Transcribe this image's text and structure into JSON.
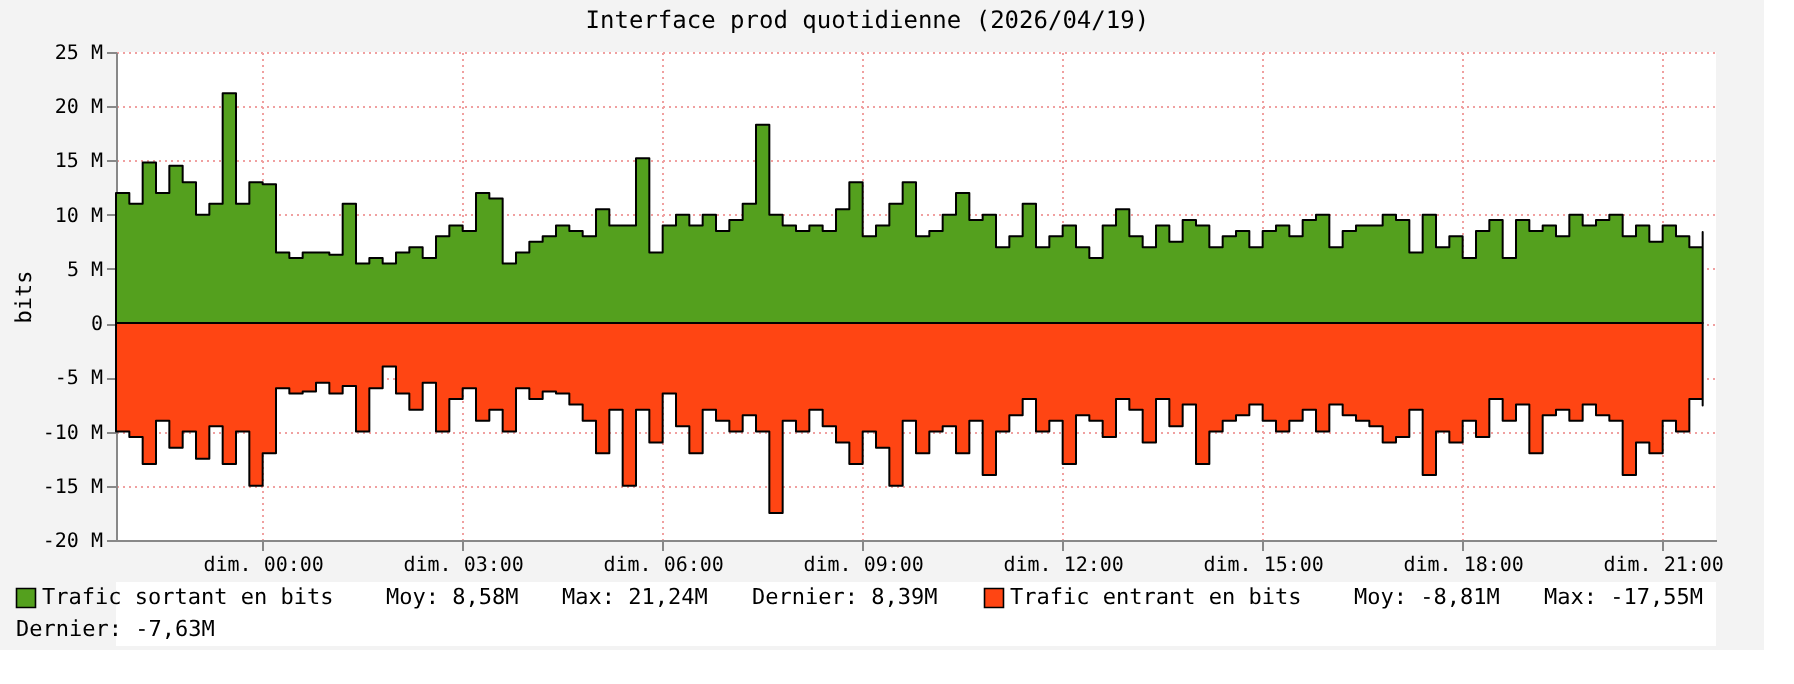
{
  "chart_data": {
    "type": "area",
    "title": "Interface prod quotidienne (2026/04/19)",
    "ylabel": "bits",
    "x": [
      "2026-04-18T21:48",
      "2026-04-18T22:00",
      "2026-04-18T22:12",
      "2026-04-18T22:24",
      "2026-04-18T22:36",
      "2026-04-18T22:48",
      "2026-04-18T23:00",
      "2026-04-18T23:12",
      "2026-04-18T23:24",
      "2026-04-18T23:36",
      "2026-04-18T23:48",
      "2026-04-19T00:00",
      "2026-04-19T00:12",
      "2026-04-19T00:24",
      "2026-04-19T00:36",
      "2026-04-19T00:48",
      "2026-04-19T01:00",
      "2026-04-19T01:12",
      "2026-04-19T01:24",
      "2026-04-19T01:36",
      "2026-04-19T01:48",
      "2026-04-19T02:00",
      "2026-04-19T02:12",
      "2026-04-19T02:24",
      "2026-04-19T02:36",
      "2026-04-19T02:48",
      "2026-04-19T03:00",
      "2026-04-19T03:12",
      "2026-04-19T03:24",
      "2026-04-19T03:36",
      "2026-04-19T03:48",
      "2026-04-19T04:00",
      "2026-04-19T04:12",
      "2026-04-19T04:24",
      "2026-04-19T04:36",
      "2026-04-19T04:48",
      "2026-04-19T05:00",
      "2026-04-19T05:12",
      "2026-04-19T05:24",
      "2026-04-19T05:36",
      "2026-04-19T05:48",
      "2026-04-19T06:00",
      "2026-04-19T06:12",
      "2026-04-19T06:24",
      "2026-04-19T06:36",
      "2026-04-19T06:48",
      "2026-04-19T07:00",
      "2026-04-19T07:12",
      "2026-04-19T07:24",
      "2026-04-19T07:36",
      "2026-04-19T07:48",
      "2026-04-19T08:00",
      "2026-04-19T08:12",
      "2026-04-19T08:24",
      "2026-04-19T08:36",
      "2026-04-19T08:48",
      "2026-04-19T09:00",
      "2026-04-19T09:12",
      "2026-04-19T09:24",
      "2026-04-19T09:36",
      "2026-04-19T09:48",
      "2026-04-19T10:00",
      "2026-04-19T10:12",
      "2026-04-19T10:24",
      "2026-04-19T10:36",
      "2026-04-19T10:48",
      "2026-04-19T11:00",
      "2026-04-19T11:12",
      "2026-04-19T11:24",
      "2026-04-19T11:36",
      "2026-04-19T11:48",
      "2026-04-19T12:00",
      "2026-04-19T12:12",
      "2026-04-19T12:24",
      "2026-04-19T12:36",
      "2026-04-19T12:48",
      "2026-04-19T13:00",
      "2026-04-19T13:12",
      "2026-04-19T13:24",
      "2026-04-19T13:36",
      "2026-04-19T13:48",
      "2026-04-19T14:00",
      "2026-04-19T14:12",
      "2026-04-19T14:24",
      "2026-04-19T14:36",
      "2026-04-19T14:48",
      "2026-04-19T15:00",
      "2026-04-19T15:12",
      "2026-04-19T15:24",
      "2026-04-19T15:36",
      "2026-04-19T15:48",
      "2026-04-19T16:00",
      "2026-04-19T16:12",
      "2026-04-19T16:24",
      "2026-04-19T16:36",
      "2026-04-19T16:48",
      "2026-04-19T17:00",
      "2026-04-19T17:12",
      "2026-04-19T17:24",
      "2026-04-19T17:36",
      "2026-04-19T17:48",
      "2026-04-19T18:00",
      "2026-04-19T18:12",
      "2026-04-19T18:24",
      "2026-04-19T18:36",
      "2026-04-19T18:48",
      "2026-04-19T19:00",
      "2026-04-19T19:12",
      "2026-04-19T19:24",
      "2026-04-19T19:36",
      "2026-04-19T19:48",
      "2026-04-19T20:00",
      "2026-04-19T20:12",
      "2026-04-19T20:24",
      "2026-04-19T20:36",
      "2026-04-19T20:48",
      "2026-04-19T21:00",
      "2026-04-19T21:12",
      "2026-04-19T21:24",
      "2026-04-19T21:36"
    ],
    "series": [
      {
        "name": "Trafic sortant en bits",
        "color": "#54a01e",
        "values": [
          12,
          11,
          14.8,
          12,
          14.5,
          13,
          10,
          11,
          21.2,
          11,
          13,
          12.8,
          6.5,
          6,
          6.5,
          6.5,
          6.3,
          11,
          5.5,
          6,
          5.5,
          6.5,
          7,
          6,
          8,
          9,
          8.5,
          12,
          11.5,
          5.5,
          6.5,
          7.5,
          8,
          9,
          8.5,
          8,
          10.5,
          9,
          9,
          15.2,
          6.5,
          9,
          10,
          9,
          10,
          8.5,
          9.5,
          11,
          18.3,
          10,
          9,
          8.5,
          9,
          8.5,
          10.5,
          13,
          8,
          9,
          11,
          13,
          8,
          8.5,
          10,
          12,
          9.5,
          10,
          7,
          8,
          11,
          7,
          8,
          9,
          7,
          6,
          9,
          10.5,
          8,
          7,
          9,
          7.5,
          9.5,
          9,
          7,
          8,
          8.5,
          7,
          8.5,
          9,
          8,
          9.5,
          10,
          7,
          8.5,
          9,
          9,
          10,
          9.5,
          6.5,
          10,
          7,
          8,
          6,
          8.5,
          9.5,
          6,
          9.5,
          8.5,
          9,
          8,
          10,
          9,
          9.5,
          10,
          8,
          9,
          7.5,
          9,
          8,
          7,
          8.4
        ]
      },
      {
        "name": "Trafic entrant en bits",
        "color": "#ff4513",
        "values": [
          -10,
          -10.5,
          -13,
          -9,
          -11.5,
          -10,
          -12.5,
          -9.5,
          -13,
          -10,
          -15,
          -12,
          -6,
          -6.5,
          -6.3,
          -5.5,
          -6.5,
          -5.8,
          -10,
          -6,
          -4,
          -6.5,
          -8,
          -5.5,
          -10,
          -7,
          -6,
          -9,
          -8,
          -10,
          -6,
          -7,
          -6.3,
          -6.5,
          -7.5,
          -9,
          -12,
          -8,
          -15,
          -8,
          -11,
          -6.5,
          -9.5,
          -12,
          -8,
          -9,
          -10,
          -8.5,
          -10,
          -17.5,
          -9,
          -10,
          -8,
          -9.5,
          -11,
          -13,
          -10,
          -11.5,
          -15,
          -9,
          -12,
          -10,
          -9.5,
          -12,
          -9,
          -14,
          -10,
          -8.5,
          -7,
          -10,
          -9,
          -13,
          -8.5,
          -9,
          -10.5,
          -7,
          -8,
          -11,
          -7,
          -9.5,
          -7.5,
          -13,
          -10,
          -9,
          -8.5,
          -7.5,
          -9,
          -10,
          -9,
          -8,
          -10,
          -7.5,
          -8.5,
          -9,
          -9.5,
          -11,
          -10.5,
          -8,
          -14,
          -10,
          -11,
          -9,
          -10.5,
          -7,
          -9,
          -7.5,
          -12,
          -8.5,
          -8,
          -9,
          -7.5,
          -8.5,
          -9,
          -14,
          -11,
          -12,
          -9,
          -10,
          -7,
          -7.6
        ]
      }
    ],
    "annotations": [
      "Moy: 8,58M",
      "Max: 21,24M",
      "Dernier: 8,39M",
      "Moy: -8,81M",
      "Max: -17,55M",
      "Dernier: -7,63M"
    ],
    "xlim": [
      "2026-04-18T21:48",
      "2026-04-19T21:48"
    ],
    "xticks": [
      {
        "value": "2026-04-19T00:00",
        "label": "dim. 00:00"
      },
      {
        "value": "2026-04-19T03:00",
        "label": "dim. 03:00"
      },
      {
        "value": "2026-04-19T06:00",
        "label": "dim. 06:00"
      },
      {
        "value": "2026-04-19T09:00",
        "label": "dim. 09:00"
      },
      {
        "value": "2026-04-19T12:00",
        "label": "dim. 12:00"
      },
      {
        "value": "2026-04-19T15:00",
        "label": "dim. 15:00"
      },
      {
        "value": "2026-04-19T18:00",
        "label": "dim. 18:00"
      },
      {
        "value": "2026-04-19T21:00",
        "label": "dim. 21:00"
      }
    ],
    "ylim": [
      -20,
      25
    ],
    "yticks": [
      {
        "value": -20,
        "label": "-20 M"
      },
      {
        "value": -15,
        "label": "-15 M"
      },
      {
        "value": -10,
        "label": "-10 M"
      },
      {
        "value": -5,
        "label": "-5 M"
      },
      0,
      {
        "value": 5,
        "label": "5 M"
      },
      {
        "value": 10,
        "label": "10 M"
      },
      {
        "value": 15,
        "label": "15 M"
      },
      {
        "value": 20,
        "label": "20 M"
      },
      {
        "value": 25,
        "label": "25 M"
      }
    ],
    "grid": true,
    "legend": "bottom",
    "line_style": "solid"
  }
}
